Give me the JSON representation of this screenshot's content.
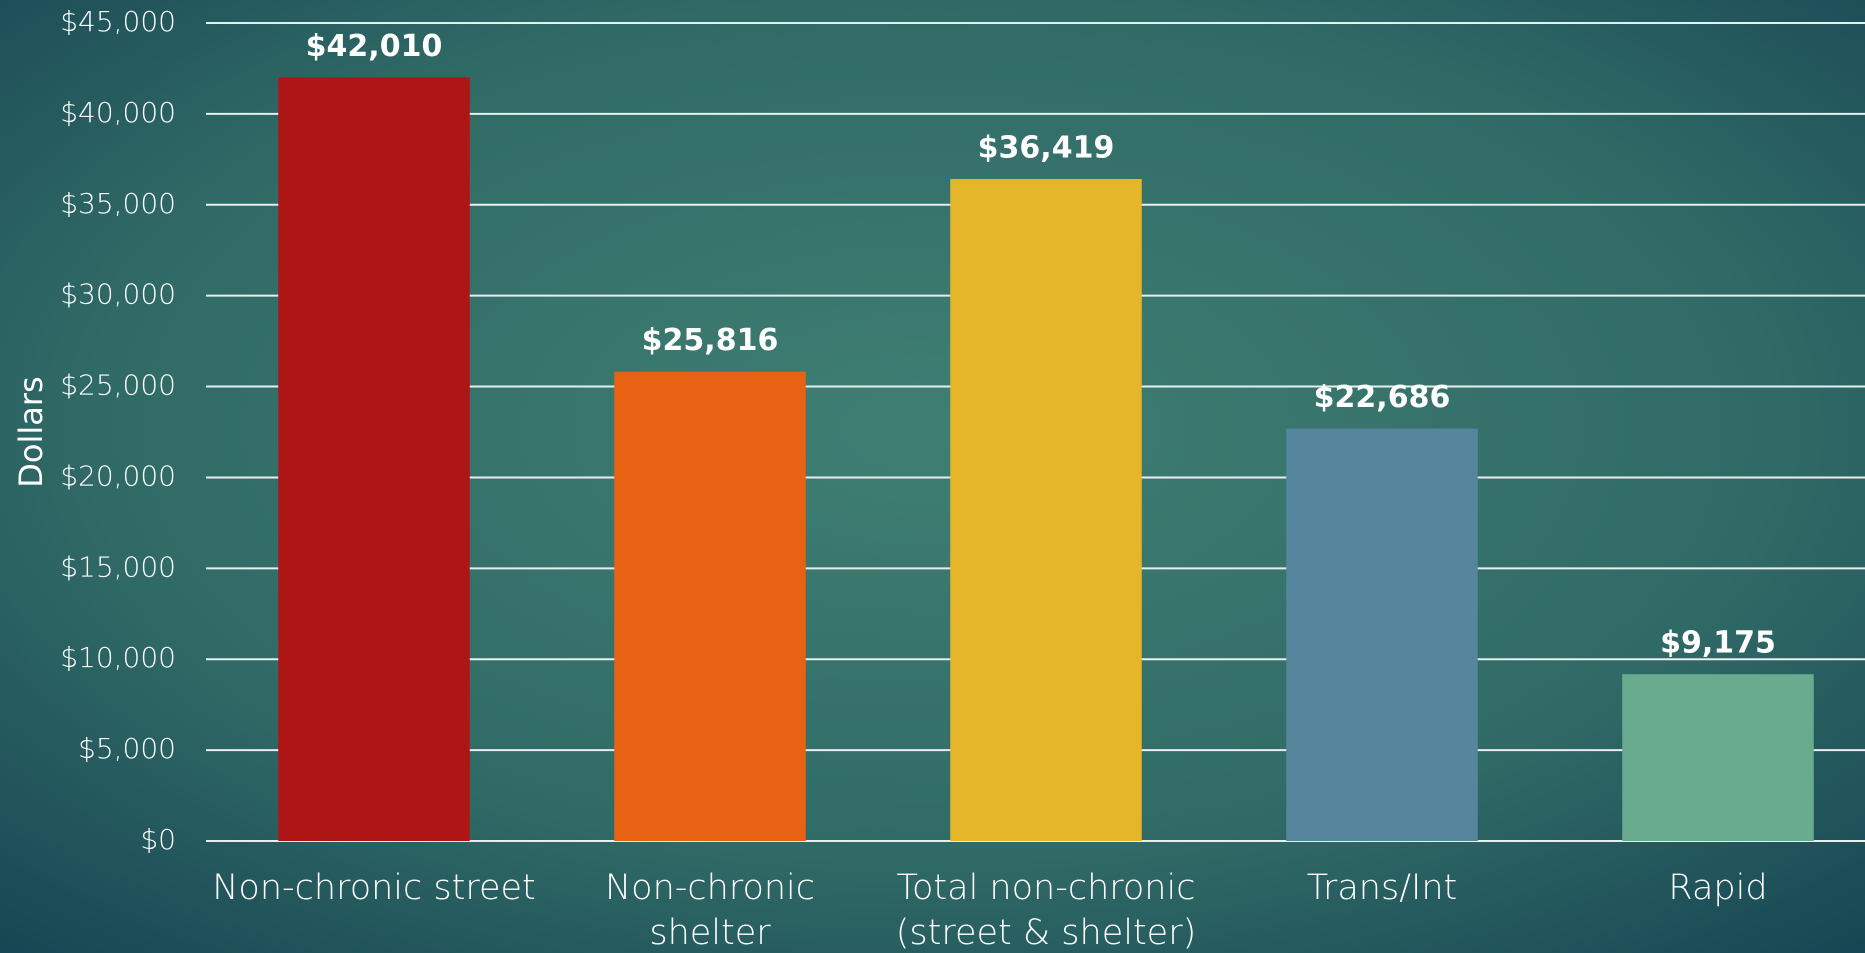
{
  "chart_data": {
    "type": "bar",
    "y_axis_label": "Dollars",
    "categories": [
      [
        "Non-chronic street"
      ],
      [
        "Non-chronic",
        "shelter"
      ],
      [
        "Total non-chronic",
        "(street & shelter)"
      ],
      [
        "Trans/Int"
      ],
      [
        "Rapid"
      ]
    ],
    "values": [
      42010,
      25816,
      36419,
      22686,
      9175
    ],
    "value_labels": [
      "$42,010",
      "$25,816",
      "$36,419",
      "$22,686",
      "$9,175"
    ],
    "colors": [
      "#ae1616",
      "#e86214",
      "#e5b52a",
      "#55869d",
      "#68ab8f"
    ],
    "ylim": [
      0,
      45000
    ],
    "yticks": [
      {
        "value": 0,
        "label": "$0"
      },
      {
        "value": 5000,
        "label": "$5,000"
      },
      {
        "value": 10000,
        "label": "$10,000"
      },
      {
        "value": 15000,
        "label": "$15,000"
      },
      {
        "value": 20000,
        "label": "$20,000"
      },
      {
        "value": 25000,
        "label": "$25,000"
      },
      {
        "value": 30000,
        "label": "$30,000"
      },
      {
        "value": 35000,
        "label": "$35,000"
      },
      {
        "value": 40000,
        "label": "$40,000"
      },
      {
        "value": 45000,
        "label": "$45,000"
      }
    ],
    "grid": true
  }
}
